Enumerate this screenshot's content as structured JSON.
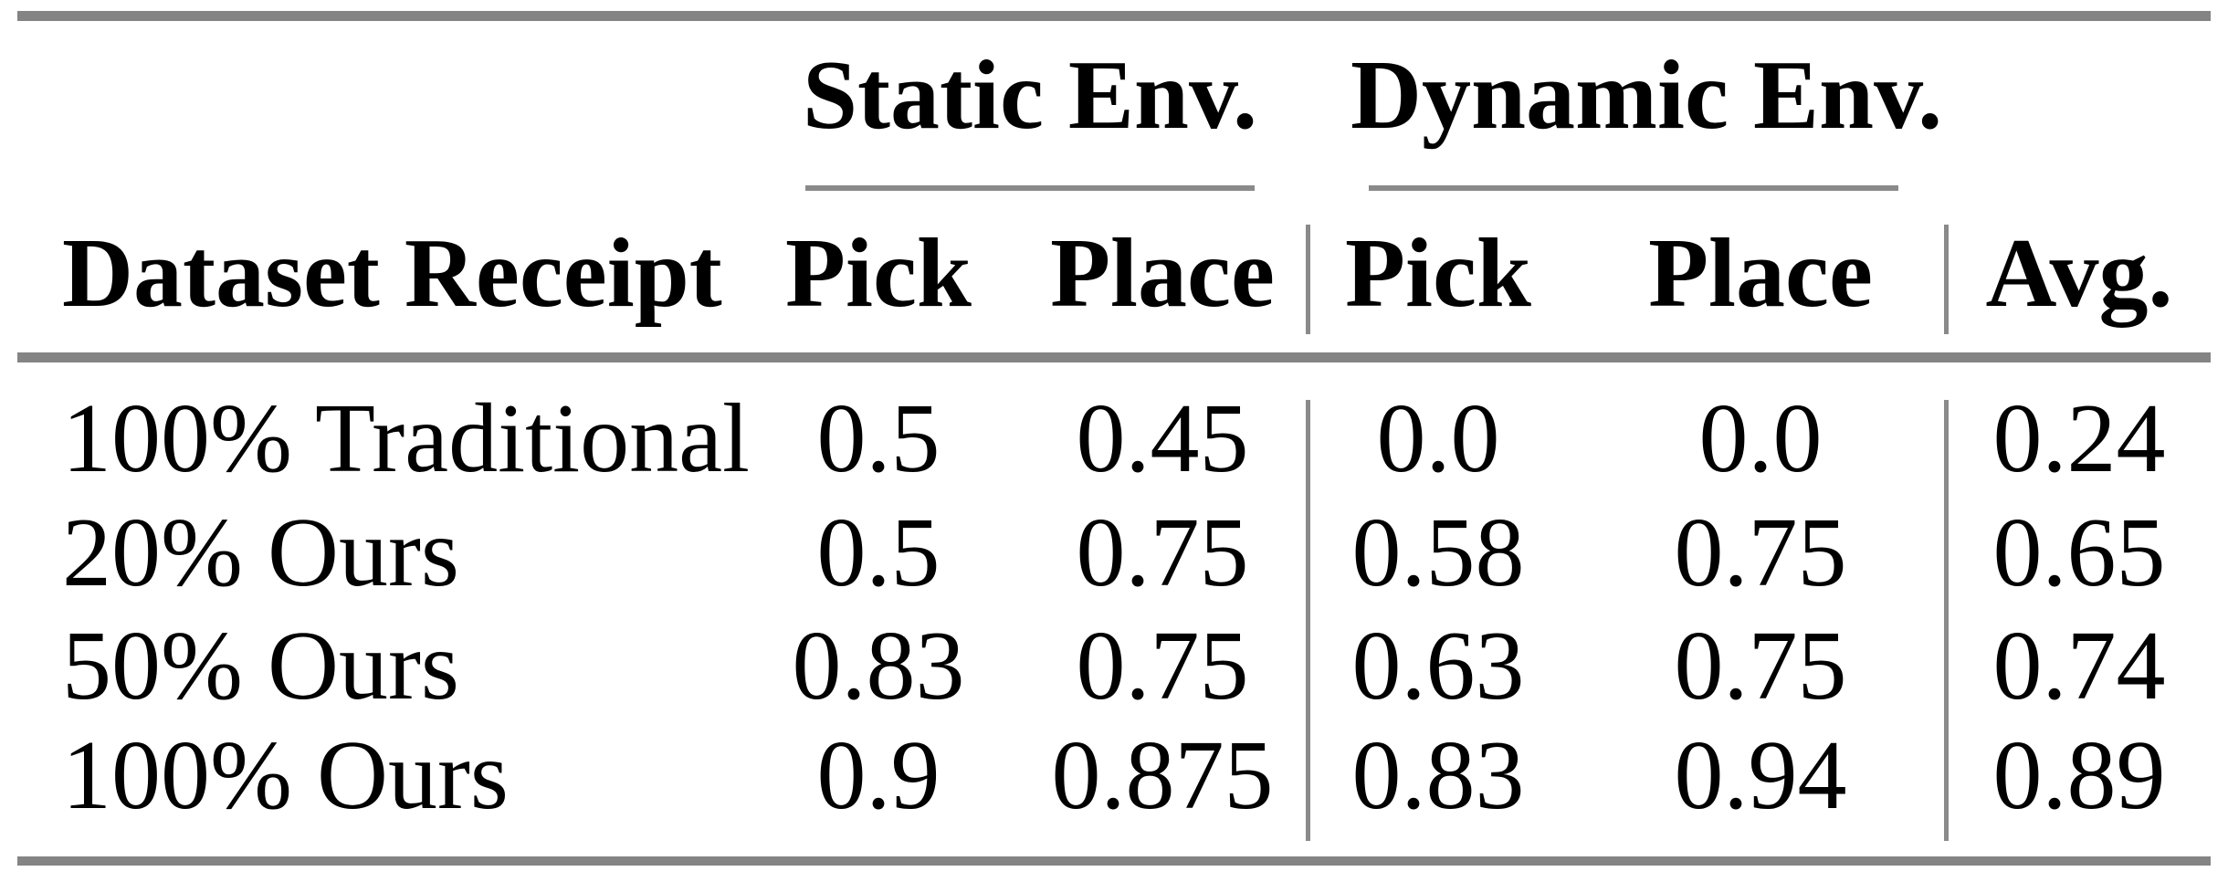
{
  "table": {
    "group_headers": [
      {
        "label": "Static Env."
      },
      {
        "label": "Dynamic Env."
      }
    ],
    "columns": {
      "dataset": "Dataset Receipt",
      "static_pick": "Pick",
      "static_place": "Place",
      "dynamic_pick": "Pick",
      "dynamic_place": "Place",
      "avg": "Avg."
    },
    "rows": [
      {
        "dataset": "100% Traditional",
        "static_pick": "0.5",
        "static_place": "0.45",
        "dynamic_pick": "0.0",
        "dynamic_place": "0.0",
        "avg": "0.24"
      },
      {
        "dataset": "20% Ours",
        "static_pick": "0.5",
        "static_place": "0.75",
        "dynamic_pick": "0.58",
        "dynamic_place": "0.75",
        "avg": "0.65"
      },
      {
        "dataset": "50% Ours",
        "static_pick": "0.83",
        "static_place": "0.75",
        "dynamic_pick": "0.63",
        "dynamic_place": "0.75",
        "avg": "0.74"
      },
      {
        "dataset": "100% Ours",
        "static_pick": "0.9",
        "static_place": "0.875",
        "dynamic_pick": "0.83",
        "dynamic_place": "0.94",
        "avg": "0.89"
      }
    ]
  },
  "chart_data": {
    "type": "table",
    "column_groups": [
      "",
      "Static Env.",
      "Static Env.",
      "Dynamic Env.",
      "Dynamic Env.",
      ""
    ],
    "columns": [
      "Dataset Receipt",
      "Pick",
      "Place",
      "Pick",
      "Place",
      "Avg."
    ],
    "rows": [
      [
        "100% Traditional",
        0.5,
        0.45,
        0.0,
        0.0,
        0.24
      ],
      [
        "20% Ours",
        0.5,
        0.75,
        0.58,
        0.75,
        0.65
      ],
      [
        "50% Ours",
        0.83,
        0.75,
        0.63,
        0.75,
        0.74
      ],
      [
        "100% Ours",
        0.9,
        0.875,
        0.83,
        0.94,
        0.89
      ]
    ]
  },
  "colors": {
    "rule_gray": "#848484",
    "text": "#000000",
    "background": "#ffffff"
  }
}
